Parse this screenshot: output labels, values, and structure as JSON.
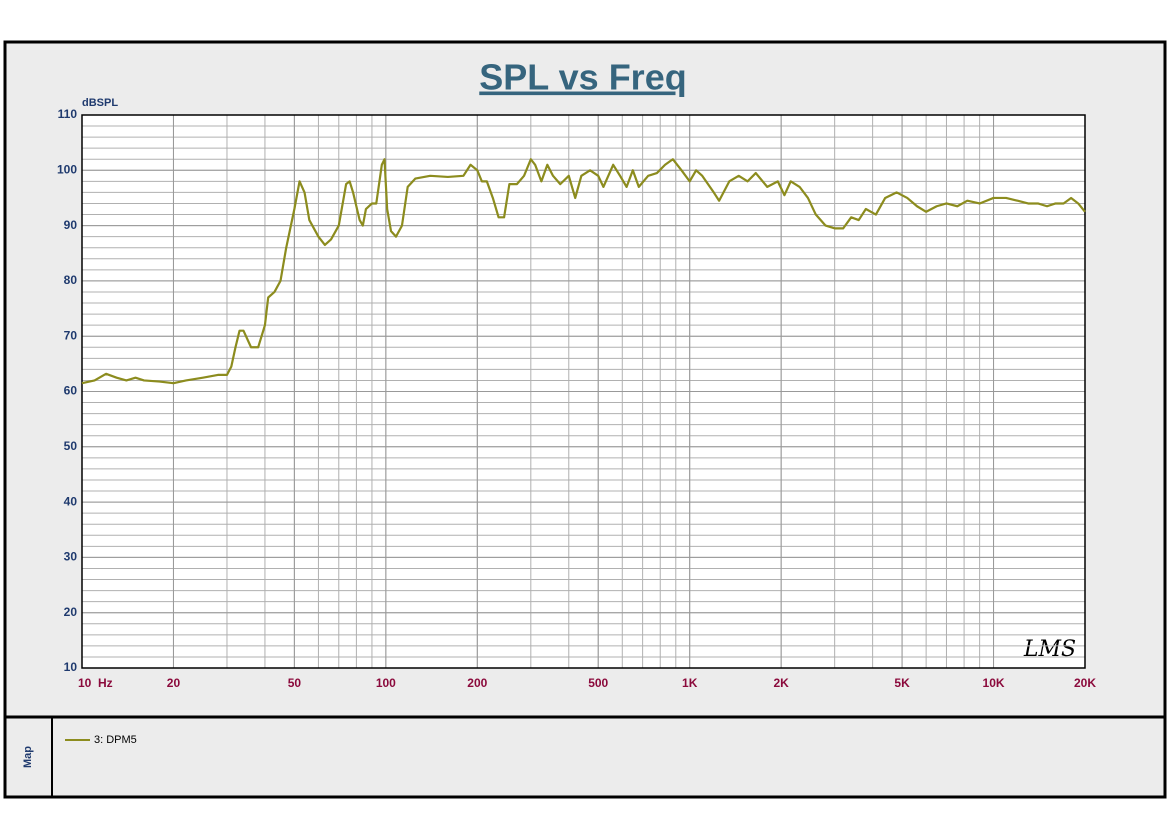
{
  "chart_data": {
    "type": "line",
    "title": "SPL vs Freq",
    "y_label": "dBSPL",
    "watermark": "LMS",
    "panel_label": "Map",
    "x_log": true,
    "grid": true,
    "xlim": [
      10,
      20000
    ],
    "ylim": [
      10,
      110
    ],
    "xticks": [
      {
        "value": 10,
        "label": "10  Hz"
      },
      20,
      50,
      100,
      200,
      500,
      {
        "value": 1000,
        "label": "1K"
      },
      {
        "value": 2000,
        "label": "2K"
      },
      {
        "value": 5000,
        "label": "5K"
      },
      {
        "value": 10000,
        "label": "10K"
      },
      {
        "value": 20000,
        "label": "20K"
      }
    ],
    "yticks": [
      10,
      20,
      30,
      40,
      50,
      60,
      70,
      80,
      90,
      100,
      110
    ],
    "x": [
      10,
      11,
      12,
      13,
      14,
      15,
      16,
      18,
      20,
      22,
      25,
      28,
      30,
      31,
      32,
      33,
      34,
      36,
      38,
      40,
      41,
      43,
      45,
      47,
      50,
      52,
      54,
      56,
      60,
      63,
      66,
      70,
      74,
      76,
      78,
      82,
      84,
      86,
      90,
      93,
      97,
      99,
      101,
      104,
      108,
      113,
      118,
      125,
      140,
      160,
      180,
      190,
      200,
      207,
      215,
      225,
      235,
      245,
      255,
      270,
      285,
      300,
      310,
      325,
      340,
      355,
      375,
      400,
      420,
      440,
      470,
      500,
      520,
      560,
      590,
      620,
      650,
      680,
      730,
      780,
      830,
      880,
      940,
      1000,
      1050,
      1100,
      1200,
      1250,
      1350,
      1450,
      1550,
      1650,
      1800,
      1950,
      2050,
      2150,
      2300,
      2450,
      2600,
      2800,
      3000,
      3200,
      3400,
      3600,
      3800,
      4100,
      4400,
      4800,
      5200,
      5600,
      6000,
      6500,
      7000,
      7600,
      8200,
      9000,
      10000,
      11000,
      12000,
      13000,
      14000,
      15000,
      16000,
      17000,
      18000,
      19000,
      20000
    ],
    "series": [
      {
        "name": "3: DPM5",
        "color": "#8c8c1e",
        "values": [
          61.5,
          62,
          63.2,
          62.5,
          62,
          62.5,
          62,
          61.8,
          61.5,
          62,
          62.5,
          63,
          63,
          64.5,
          68,
          71,
          71,
          68,
          68,
          72,
          77,
          78,
          80,
          86,
          93,
          98,
          96,
          91,
          88,
          86.5,
          87.5,
          90,
          97.5,
          98,
          96,
          91,
          90,
          93,
          94,
          94,
          101,
          102,
          93,
          89,
          88,
          90,
          97,
          98.5,
          99,
          98.8,
          99,
          101,
          100,
          98,
          98,
          95,
          91.5,
          91.5,
          97.5,
          97.5,
          99,
          102,
          101,
          98,
          101,
          99,
          97.5,
          99,
          95,
          99,
          100,
          99,
          97,
          101,
          99,
          97,
          100,
          97,
          99,
          99.5,
          101,
          102,
          100,
          98,
          100,
          99,
          96,
          94.5,
          98,
          99,
          98,
          99.5,
          97,
          98,
          95.5,
          98,
          97,
          95,
          92,
          90,
          89.5,
          89.5,
          91.5,
          91,
          93,
          92,
          95,
          96,
          95,
          93.5,
          92.5,
          93.5,
          94,
          93.5,
          94.5,
          94,
          95,
          95,
          94.5,
          94,
          94,
          93.5,
          94,
          94,
          95,
          94,
          92.5
        ]
      }
    ]
  }
}
